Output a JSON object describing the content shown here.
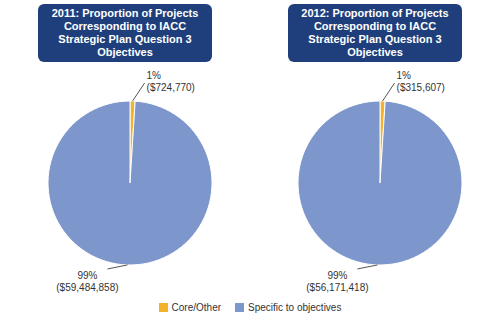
{
  "chart_data": [
    {
      "type": "pie",
      "title": "2011: Proportion of Projects Corresponding to IACC Strategic Plan Question 3 Objectives",
      "categories": [
        "Core/Other",
        "Specific to objectives"
      ],
      "values": [
        1,
        99
      ],
      "value_labels": [
        "1%",
        "99%"
      ],
      "amount_labels": [
        "($724,770)",
        "($59,484,858)"
      ],
      "colors": [
        "#F2B32A",
        "#7D96CB"
      ],
      "data_labels": true,
      "legend": "bottom"
    },
    {
      "type": "pie",
      "title": "2012: Proportion of Projects Corresponding to IACC Strategic Plan Question 3 Objectives",
      "categories": [
        "Core/Other",
        "Specific to objectives"
      ],
      "values": [
        1,
        99
      ],
      "value_labels": [
        "1%",
        "99%"
      ],
      "amount_labels": [
        "($315,607)",
        "($56,171,418)"
      ],
      "colors": [
        "#F2B32A",
        "#7D96CB"
      ],
      "data_labels": true,
      "legend": "bottom"
    }
  ]
}
